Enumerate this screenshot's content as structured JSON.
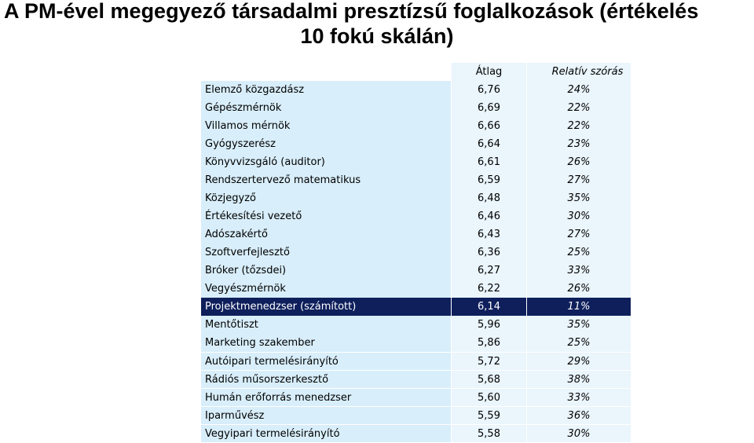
{
  "title": {
    "line1": "A PM-ével megegyező társadalmi presztízsű foglalkozások (értékelés",
    "line2": "10 fokú skálán)"
  },
  "table": {
    "headers": {
      "average": "Átlag",
      "rsd": "Relatív szórás"
    },
    "rows": [
      {
        "name": "Elemző közgazdász",
        "avg": "6,76",
        "rsd": "24%"
      },
      {
        "name": "Gépészmérnök",
        "avg": "6,69",
        "rsd": "22%"
      },
      {
        "name": "Villamos mérnök",
        "avg": "6,66",
        "rsd": "22%"
      },
      {
        "name": "Gyógyszerész",
        "avg": "6,64",
        "rsd": "23%"
      },
      {
        "name": "Könyvvizsgáló (auditor)",
        "avg": "6,61",
        "rsd": "26%"
      },
      {
        "name": "Rendszertervező matematikus",
        "avg": "6,59",
        "rsd": "27%"
      },
      {
        "name": "Közjegyző",
        "avg": "6,48",
        "rsd": "35%"
      },
      {
        "name": "Értékesítési vezető",
        "avg": "6,46",
        "rsd": "30%"
      },
      {
        "name": "Adószakértő",
        "avg": "6,43",
        "rsd": "27%"
      },
      {
        "name": "Szoftverfejlesztő",
        "avg": "6,36",
        "rsd": "25%"
      },
      {
        "name": "Bróker (tőzsdei)",
        "avg": "6,27",
        "rsd": "33%"
      },
      {
        "name": "Vegyészmérnök",
        "avg": "6,22",
        "rsd": "26%"
      },
      {
        "name": "Projektmenedzser (számított)",
        "avg": "6,14",
        "rsd": "11%",
        "highlight": true
      },
      {
        "name": "Mentőtiszt",
        "avg": "5,96",
        "rsd": "35%"
      },
      {
        "name": "Marketing szakember",
        "avg": "5,86",
        "rsd": "25%"
      },
      {
        "name": "Autóipari termelésirányító",
        "avg": "5,72",
        "rsd": "29%"
      },
      {
        "name": "Rádiós műsorszerkesztő",
        "avg": "5,68",
        "rsd": "38%"
      },
      {
        "name": "Humán erőforrás menedzser",
        "avg": "5,60",
        "rsd": "33%"
      },
      {
        "name": "Iparművész",
        "avg": "5,59",
        "rsd": "36%"
      },
      {
        "name": "Vegyipari termelésirányító",
        "avg": "5,58",
        "rsd": "30%"
      }
    ]
  }
}
